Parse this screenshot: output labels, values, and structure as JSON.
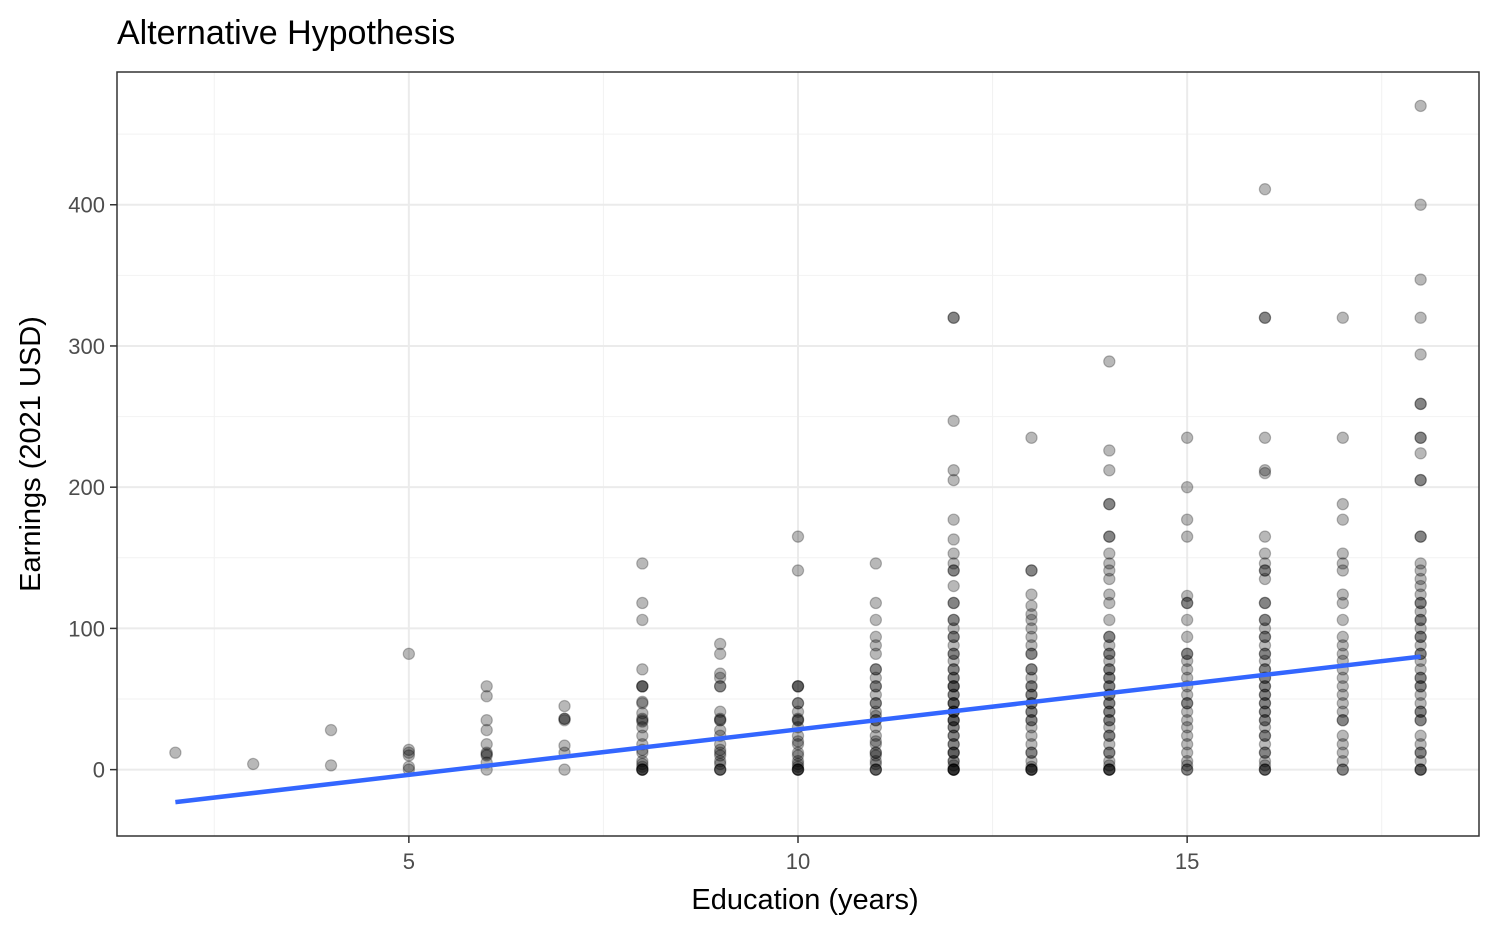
{
  "chart_data": {
    "type": "scatter",
    "title": "Alternative Hypothesis",
    "xlabel": "Education (years)",
    "ylabel": "Earnings (2021 USD)",
    "xlim": [
      1.25,
      18.75
    ],
    "ylim": [
      -47,
      494
    ],
    "x_ticks": [
      5,
      10,
      15
    ],
    "x_tick_labels": [
      "5",
      "10",
      "15"
    ],
    "y_ticks": [
      0,
      100,
      200,
      300,
      400
    ],
    "y_tick_labels": [
      "0",
      "100",
      "200",
      "300",
      "400"
    ],
    "grid": true,
    "legend": "none",
    "point_color": "#000000",
    "point_alpha": 0.28,
    "line_color": "#3366ff",
    "fit_line": {
      "x": [
        2,
        18
      ],
      "y": [
        -23,
        80
      ]
    },
    "points": [
      {
        "x": 2,
        "y": [
          12
        ]
      },
      {
        "x": 3,
        "y": [
          4
        ]
      },
      {
        "x": 4,
        "y": [
          28,
          3
        ]
      },
      {
        "x": 5,
        "y": [
          82,
          14,
          12,
          10,
          2,
          0
        ]
      },
      {
        "x": 6,
        "y": [
          59,
          52,
          35,
          28,
          18,
          12,
          11,
          10,
          5,
          0
        ]
      },
      {
        "x": 7,
        "y": [
          45,
          36,
          36,
          35,
          17,
          12,
          0
        ]
      },
      {
        "x": 8,
        "y": [
          146,
          118,
          106,
          71,
          59,
          59,
          59,
          48,
          47,
          40,
          36,
          35,
          34,
          30,
          24,
          18,
          14,
          12,
          6,
          4,
          2,
          0,
          0,
          0,
          0
        ]
      },
      {
        "x": 9,
        "y": [
          89,
          82,
          68,
          65,
          59,
          59,
          41,
          36,
          35,
          35,
          28,
          24,
          18,
          14,
          12,
          10,
          6,
          4,
          0,
          0,
          0
        ]
      },
      {
        "x": 10,
        "y": [
          165,
          141,
          59,
          59,
          59,
          47,
          47,
          41,
          36,
          35,
          35,
          30,
          24,
          20,
          18,
          12,
          10,
          6,
          4,
          2,
          0,
          0,
          0,
          0
        ]
      },
      {
        "x": 11,
        "y": [
          146,
          118,
          106,
          94,
          88,
          82,
          71,
          71,
          65,
          59,
          59,
          53,
          47,
          47,
          41,
          38,
          35,
          35,
          30,
          24,
          20,
          18,
          12,
          12,
          10,
          6,
          4,
          0,
          0,
          0
        ]
      },
      {
        "x": 12,
        "y": [
          320,
          320,
          247,
          212,
          205,
          177,
          163,
          153,
          146,
          141,
          141,
          130,
          118,
          118,
          106,
          106,
          100,
          94,
          94,
          88,
          82,
          82,
          77,
          71,
          71,
          65,
          65,
          59,
          59,
          59,
          53,
          53,
          47,
          47,
          47,
          41,
          41,
          41,
          35,
          35,
          35,
          30,
          30,
          24,
          24,
          18,
          18,
          12,
          12,
          12,
          6,
          6,
          3,
          0,
          0,
          0,
          0,
          0
        ]
      },
      {
        "x": 13,
        "y": [
          235,
          141,
          141,
          124,
          116,
          110,
          106,
          100,
          94,
          88,
          82,
          82,
          71,
          71,
          65,
          59,
          59,
          53,
          53,
          47,
          47,
          41,
          41,
          35,
          35,
          30,
          24,
          18,
          12,
          12,
          6,
          2,
          0,
          0,
          0,
          0
        ]
      },
      {
        "x": 14,
        "y": [
          289,
          226,
          212,
          188,
          188,
          165,
          165,
          153,
          146,
          141,
          135,
          124,
          118,
          106,
          94,
          94,
          88,
          82,
          82,
          77,
          71,
          71,
          65,
          65,
          59,
          59,
          53,
          53,
          47,
          47,
          41,
          41,
          35,
          35,
          30,
          24,
          24,
          18,
          12,
          12,
          6,
          3,
          0,
          0,
          0,
          0
        ]
      },
      {
        "x": 15,
        "y": [
          235,
          200,
          177,
          165,
          123,
          118,
          118,
          106,
          94,
          82,
          82,
          77,
          71,
          65,
          59,
          53,
          47,
          47,
          41,
          35,
          30,
          24,
          18,
          12,
          6,
          3,
          0,
          0
        ]
      },
      {
        "x": 16,
        "y": [
          411,
          320,
          320,
          235,
          212,
          210,
          165,
          153,
          146,
          141,
          141,
          135,
          118,
          118,
          106,
          106,
          100,
          94,
          94,
          88,
          82,
          82,
          77,
          71,
          71,
          65,
          65,
          59,
          59,
          53,
          53,
          47,
          47,
          41,
          41,
          35,
          35,
          30,
          24,
          24,
          18,
          12,
          12,
          6,
          3,
          0,
          0,
          0
        ]
      },
      {
        "x": 17,
        "y": [
          320,
          235,
          188,
          177,
          153,
          146,
          141,
          124,
          118,
          106,
          94,
          88,
          82,
          77,
          71,
          65,
          59,
          53,
          47,
          41,
          35,
          35,
          24,
          18,
          12,
          6,
          0,
          0
        ]
      },
      {
        "x": 18,
        "y": [
          470,
          400,
          347,
          320,
          294,
          259,
          259,
          235,
          235,
          224,
          205,
          205,
          165,
          165,
          146,
          141,
          135,
          130,
          124,
          118,
          118,
          112,
          106,
          106,
          100,
          94,
          94,
          88,
          82,
          82,
          77,
          71,
          65,
          65,
          59,
          59,
          53,
          47,
          41,
          41,
          35,
          35,
          24,
          18,
          12,
          12,
          6,
          0,
          0,
          0
        ]
      }
    ]
  }
}
